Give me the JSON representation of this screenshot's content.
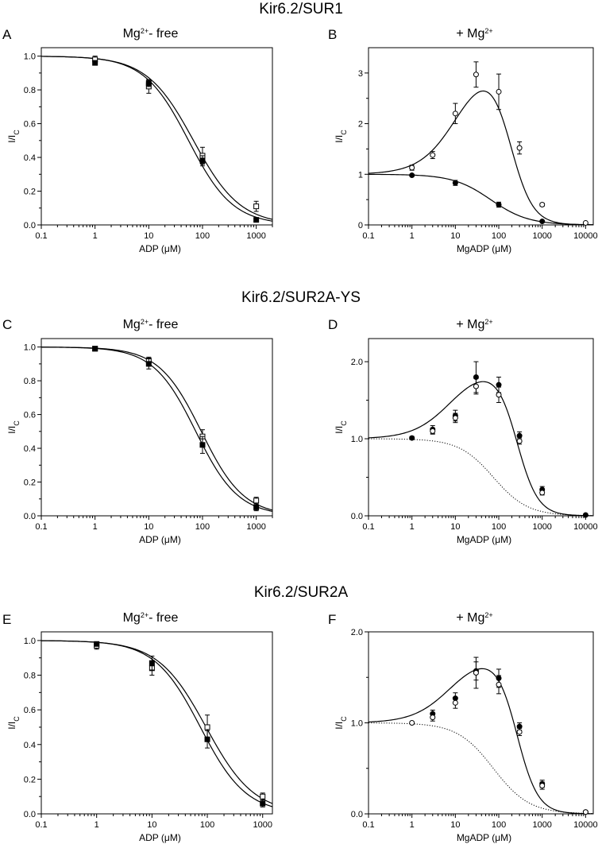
{
  "rows": [
    {
      "title": "Kir6.2/SUR1",
      "left": {
        "label": "A",
        "title_main": "Mg",
        "title_sup": "2+",
        "title_rest": "- free",
        "ylabel_main": "I/I",
        "ylabel_sub": "C",
        "xlabel": "ADP (μM)",
        "xticks": [
          "0.1",
          "1",
          "10",
          "100",
          "1000"
        ],
        "yticks": [
          "0.0",
          "0.2",
          "0.4",
          "0.6",
          "0.8",
          "1.0"
        ]
      },
      "right": {
        "label": "B",
        "title_main": "+ Mg",
        "title_sup": "2+",
        "ylabel_main": "I/I",
        "ylabel_sub": "C",
        "xlabel": "MgADP (μM)",
        "xticks": [
          "0.1",
          "1",
          "10",
          "100",
          "1000",
          "10000"
        ],
        "yticks": [
          "0",
          "1",
          "2",
          "3"
        ]
      }
    },
    {
      "title": "Kir6.2/SUR2A-YS",
      "left": {
        "label": "C",
        "title_main": "Mg",
        "title_sup": "2+",
        "title_rest": "- free",
        "ylabel_main": "I/I",
        "ylabel_sub": "C",
        "xlabel": "ADP (μM)",
        "xticks": [
          "0.1",
          "1",
          "10",
          "100",
          "1000"
        ],
        "yticks": [
          "0.0",
          "0.2",
          "0.4",
          "0.6",
          "0.8",
          "1.0"
        ]
      },
      "right": {
        "label": "D",
        "title_main": "+ Mg",
        "title_sup": "2+",
        "ylabel_main": "I/I",
        "ylabel_sub": "C",
        "xlabel": "MgADP (μM)",
        "xticks": [
          "0.1",
          "1",
          "10",
          "100",
          "1000",
          "10000"
        ],
        "yticks": [
          "0.0",
          "1.0",
          "2.0"
        ]
      }
    },
    {
      "title": "Kir6.2/SUR2A",
      "left": {
        "label": "E",
        "title_main": "Mg",
        "title_sup": "2+",
        "title_rest": "- free",
        "ylabel_main": "I/I",
        "ylabel_sub": "C",
        "xlabel": "ADP (μM)",
        "xticks": [
          "0.1",
          "1",
          "10",
          "100",
          "1000"
        ],
        "yticks": [
          "0.0",
          "0.2",
          "0.4",
          "0.6",
          "0.8",
          "1.0"
        ]
      },
      "right": {
        "label": "F",
        "title_main": "+ Mg",
        "title_sup": "2+",
        "ylabel_main": "I/I",
        "ylabel_sub": "C",
        "xlabel": "MgADP (μM)",
        "xticks": [
          "0.1",
          "1",
          "10",
          "100",
          "1000",
          "10000"
        ],
        "yticks": [
          "0.0",
          "1.0",
          "2.0"
        ]
      }
    }
  ],
  "chart_data": [
    {
      "id": "A",
      "type": "scatter",
      "xscale": "log",
      "xlim": [
        0.1,
        2000
      ],
      "ylim": [
        0,
        1.05
      ],
      "series": [
        {
          "name": "open squares",
          "marker": "square-open",
          "x": [
            1,
            10,
            100,
            1000
          ],
          "y": [
            0.98,
            0.82,
            0.41,
            0.11
          ],
          "err": [
            0.02,
            0.04,
            0.05,
            0.03
          ],
          "fit": {
            "kind": "hill",
            "ic50": 68,
            "h": 1.0
          }
        },
        {
          "name": "filled squares",
          "marker": "square-filled",
          "x": [
            1,
            10,
            100,
            1000
          ],
          "y": [
            0.96,
            0.84,
            0.38,
            0.03
          ],
          "err": [
            0.01,
            0.02,
            0.03,
            0.0
          ],
          "fit": {
            "kind": "hill",
            "ic50": 55,
            "h": 1.05
          }
        },
        {
          "name": "filled circles",
          "marker": "circle-filled",
          "x": [
            10
          ],
          "y": [
            0.84
          ],
          "err": [
            0.02
          ]
        }
      ]
    },
    {
      "id": "B",
      "type": "scatter",
      "xscale": "log",
      "xlim": [
        0.1,
        15000
      ],
      "ylim": [
        0,
        3.5
      ],
      "series": [
        {
          "name": "open circles",
          "marker": "circle-open",
          "x": [
            1,
            3,
            10,
            30,
            100,
            300,
            1000,
            10000
          ],
          "y": [
            1.13,
            1.38,
            2.2,
            2.97,
            2.63,
            1.52,
            0.4,
            0.04
          ],
          "err": [
            0.05,
            0.07,
            0.2,
            0.25,
            0.35,
            0.12,
            0.03,
            0.01
          ],
          "fit": {
            "kind": "bell",
            "a": 3.4,
            "ea": 12,
            "ic": 180,
            "h": 1.7
          }
        },
        {
          "name": "filled circles",
          "marker": "circle-filled",
          "x": [
            1,
            10,
            100,
            1000
          ],
          "y": [
            0.98,
            0.83,
            0.4,
            0.07
          ],
          "err": [
            0.02,
            0.05,
            0.05,
            0.02
          ],
          "fit": {
            "kind": "hill",
            "ic50": 65,
            "h": 1.0
          }
        }
      ]
    },
    {
      "id": "C",
      "type": "scatter",
      "xscale": "log",
      "xlim": [
        0.1,
        2000
      ],
      "ylim": [
        0,
        1.05
      ],
      "series": [
        {
          "name": "open squares",
          "marker": "square-open",
          "x": [
            1,
            10,
            100,
            1000
          ],
          "y": [
            0.99,
            0.92,
            0.47,
            0.09
          ],
          "err": [
            0.01,
            0.02,
            0.04,
            0.02
          ],
          "fit": {
            "kind": "hill",
            "ic50": 95,
            "h": 1.1
          }
        },
        {
          "name": "filled squares",
          "marker": "square-filled",
          "x": [
            1,
            10,
            100,
            1000
          ],
          "y": [
            0.99,
            0.9,
            0.42,
            0.05
          ],
          "err": [
            0.01,
            0.03,
            0.05,
            0.02
          ],
          "fit": {
            "kind": "hill",
            "ic50": 75,
            "h": 1.1
          }
        }
      ]
    },
    {
      "id": "D",
      "type": "scatter",
      "xscale": "log",
      "xlim": [
        0.1,
        15000
      ],
      "ylim": [
        0,
        2.3
      ],
      "series": [
        {
          "name": "filled circles",
          "marker": "circle-filled",
          "x": [
            1,
            3,
            10,
            30,
            100,
            300,
            1000,
            10000
          ],
          "y": [
            1.01,
            1.12,
            1.3,
            1.8,
            1.7,
            1.04,
            0.34,
            0.01
          ],
          "err": [
            0.02,
            0.05,
            0.07,
            0.2,
            0.1,
            0.05,
            0.04,
            0.0
          ],
          "fit": {
            "kind": "bell",
            "a": 1.96,
            "ea": 8,
            "ic": 260,
            "h": 1.8
          }
        },
        {
          "name": "open circles",
          "marker": "circle-open",
          "x": [
            3,
            10,
            30,
            100,
            300,
            1000
          ],
          "y": [
            1.1,
            1.27,
            1.68,
            1.57,
            0.97,
            0.3
          ],
          "err": [
            0.04,
            0.06,
            0.1,
            0.1,
            0.04,
            0.03
          ]
        },
        {
          "name": "dotted reference",
          "marker": "none",
          "line": "dotted",
          "x": [],
          "y": [],
          "fit": {
            "kind": "hill",
            "ic50": 75,
            "h": 1.1
          }
        }
      ]
    },
    {
      "id": "E",
      "type": "scatter",
      "xscale": "log",
      "xlim": [
        0.1,
        1500
      ],
      "ylim": [
        0,
        1.05
      ],
      "series": [
        {
          "name": "open squares",
          "marker": "square-open",
          "x": [
            1,
            10,
            100,
            1000
          ],
          "y": [
            0.97,
            0.84,
            0.5,
            0.1
          ],
          "err": [
            0.02,
            0.04,
            0.07,
            0.02
          ],
          "fit": {
            "kind": "hill",
            "ic50": 95,
            "h": 1.0
          }
        },
        {
          "name": "filled squares",
          "marker": "square-filled",
          "x": [
            1,
            10,
            100,
            1000
          ],
          "y": [
            0.98,
            0.87,
            0.43,
            0.06
          ],
          "err": [
            0.01,
            0.04,
            0.05,
            0.02
          ],
          "fit": {
            "kind": "hill",
            "ic50": 75,
            "h": 1.05
          }
        }
      ]
    },
    {
      "id": "F",
      "type": "scatter",
      "xscale": "log",
      "xlim": [
        0.1,
        15000
      ],
      "ylim": [
        0,
        2.0
      ],
      "series": [
        {
          "name": "filled circles",
          "marker": "circle-filled",
          "x": [
            3,
            10,
            30,
            100,
            300,
            1000,
            10000
          ],
          "y": [
            1.1,
            1.27,
            1.57,
            1.49,
            0.96,
            0.33,
            0.02
          ],
          "err": [
            0.04,
            0.06,
            0.1,
            0.1,
            0.04,
            0.04,
            0.0
          ],
          "fit": {
            "kind": "bell",
            "a": 1.78,
            "ea": 8,
            "ic": 260,
            "h": 1.8
          }
        },
        {
          "name": "open circles",
          "marker": "circle-open",
          "x": [
            1,
            3,
            10,
            30,
            100,
            300,
            1000,
            10000
          ],
          "y": [
            1.0,
            1.06,
            1.22,
            1.55,
            1.42,
            0.9,
            0.31,
            0.02
          ],
          "err": [
            0.01,
            0.04,
            0.06,
            0.17,
            0.1,
            0.04,
            0.04,
            0.0
          ]
        },
        {
          "name": "dotted reference",
          "marker": "none",
          "line": "dotted",
          "x": [],
          "y": [],
          "fit": {
            "kind": "hill",
            "ic50": 75,
            "h": 1.05
          }
        }
      ]
    }
  ]
}
